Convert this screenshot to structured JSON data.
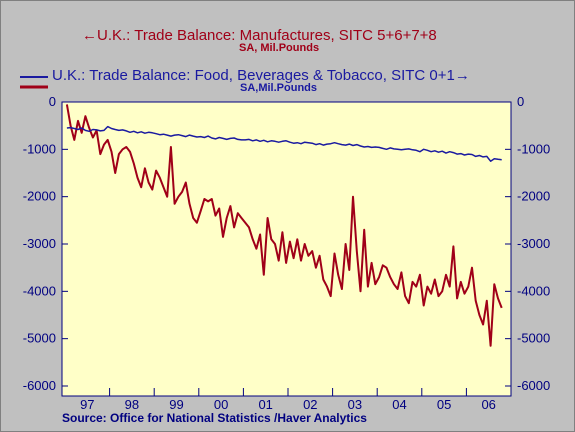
{
  "chart_data": {
    "type": "line",
    "source": "Source:  Office for National Statistics /Haver Analytics",
    "colors": {
      "plot_bg": "#ffffc8",
      "series1": "#a00018",
      "series2": "#1a1aa0",
      "axis": "#000080"
    },
    "ylim": [
      -6000,
      0
    ],
    "yticks": [
      "0",
      "-1000",
      "-2000",
      "-3000",
      "-4000",
      "-5000",
      "-6000"
    ],
    "yticks_right": [
      "0",
      "-1000",
      "-2000",
      "-3000",
      "-4000",
      "-5000",
      "-6000"
    ],
    "xlabels": [
      "97",
      "98",
      "99",
      "00",
      "01",
      "02",
      "03",
      "04",
      "05",
      "06"
    ],
    "grid": false,
    "series": [
      {
        "name": "←U.K.: Trade Balance: Manufactures, SITC 5+6+7+8",
        "unit": "SA, Mil.Pounds",
        "axis": "left",
        "values": [
          -50,
          -500,
          -800,
          -400,
          -650,
          -300,
          -550,
          -750,
          -600,
          -1100,
          -900,
          -800,
          -1050,
          -1500,
          -1100,
          -1000,
          -950,
          -1050,
          -1300,
          -1600,
          -1800,
          -1400,
          -1700,
          -1850,
          -1450,
          -1600,
          -1800,
          -2000,
          -950,
          -2150,
          -2000,
          -1900,
          -1700,
          -2150,
          -2450,
          -2550,
          -2300,
          -2050,
          -2100,
          -2050,
          -2400,
          -2250,
          -2850,
          -2450,
          -2200,
          -2650,
          -2350,
          -2450,
          -2550,
          -2650,
          -2900,
          -3100,
          -2800,
          -3650,
          -2450,
          -2900,
          -3000,
          -3350,
          -2750,
          -3400,
          -2950,
          -3300,
          -2900,
          -3350,
          -3000,
          -3250,
          -3150,
          -3500,
          -3250,
          -3750,
          -3900,
          -4100,
          -3200,
          -3650,
          -3950,
          -3000,
          -3550,
          -2000,
          -3150,
          -4000,
          -2700,
          -3900,
          -3400,
          -3850,
          -3700,
          -3450,
          -3500,
          -3700,
          -3850,
          -3950,
          -3600,
          -4100,
          -4250,
          -3800,
          -3900,
          -3650,
          -4300,
          -3900,
          -4050,
          -3750,
          -4100,
          -4000,
          -3650,
          -3900,
          -3050,
          -4150,
          -3800,
          -4050,
          -3900,
          -3500,
          -4200,
          -4500,
          -4700,
          -4200,
          -5150,
          -3850,
          -4150,
          -4350
        ]
      },
      {
        "name": "U.K.: Trade Balance: Food, Beverages & Tobacco, SITC 0+1→",
        "unit": "SA,Mil.Pounds",
        "axis": "right",
        "values": [
          -550,
          -540,
          -560,
          -580,
          -550,
          -600,
          -620,
          -580,
          -590,
          -610,
          -600,
          -520,
          -560,
          -580,
          -600,
          -590,
          -610,
          -640,
          -620,
          -650,
          -630,
          -660,
          -640,
          -650,
          -670,
          -690,
          -680,
          -700,
          -720,
          -700,
          -690,
          -710,
          -730,
          -700,
          -720,
          -740,
          -730,
          -750,
          -720,
          -760,
          -780,
          -750,
          -770,
          -790,
          -770,
          -760,
          -790,
          -800,
          -800,
          -790,
          -820,
          -800,
          -830,
          -810,
          -840,
          -820,
          -830,
          -850,
          -830,
          -820,
          -850,
          -870,
          -860,
          -880,
          -850,
          -860,
          -870,
          -900,
          -880,
          -910,
          -890,
          -880,
          -860,
          -880,
          -900,
          -910,
          -890,
          -920,
          -900,
          -930,
          -950,
          -940,
          -960,
          -950,
          -960,
          -980,
          -1000,
          -970,
          -990,
          -1000,
          -1010,
          -1000,
          -990,
          -1010,
          -1020,
          -1050,
          -1000,
          -1020,
          -1050,
          -1030,
          -1060,
          -1040,
          -1080,
          -1050,
          -1070,
          -1100,
          -1090,
          -1120,
          -1100,
          -1110,
          -1150,
          -1130,
          -1160,
          -1150,
          -1250,
          -1200,
          -1210,
          -1220
        ]
      }
    ]
  }
}
